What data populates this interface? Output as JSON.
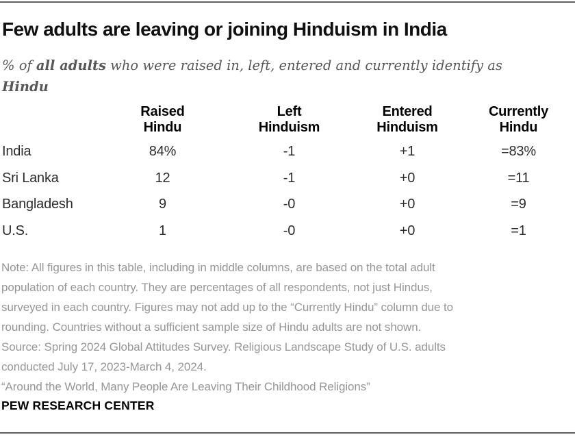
{
  "colors": {
    "background": "#ffffff",
    "title_text": "#101010",
    "subtitle_text": "#58585a",
    "table_text": "#2c2c2c",
    "header_text": "#000000",
    "note_text": "#969696",
    "rule": "#5f5f5f"
  },
  "header": {
    "title": "Few adults are leaving or joining Hinduism in India",
    "subtitle": {
      "prefix": "% of ",
      "emphasis1": "all adults",
      "middle": " who were raised in, left, entered and currently identify as",
      "emphasis2": "Hindu"
    }
  },
  "table": {
    "header": [
      {
        "l1": "Raised",
        "l2": "Hindu"
      },
      {
        "l1": "Left",
        "l2": "Hinduism"
      },
      {
        "l1": "Entered",
        "l2": "Hinduism"
      },
      {
        "l1": "Currently",
        "l2": "Hindu"
      }
    ],
    "rows": [
      {
        "country": "India",
        "raised": "84%",
        "left": "-1",
        "entered": "+1",
        "currently": "=83%"
      },
      {
        "country": "Sri Lanka",
        "raised": "12",
        "left": "-1",
        "entered": "+0",
        "currently": "=11"
      },
      {
        "country": "Bangladesh",
        "raised": "9",
        "left": "-0",
        "entered": "+0",
        "currently": "=9"
      },
      {
        "country": "U.S.",
        "raised": "1",
        "left": "-0",
        "entered": "+0",
        "currently": "=1"
      }
    ]
  },
  "chart_data": {
    "type": "table",
    "title": "Few adults are leaving or joining Hinduism in India",
    "subtitle": "% of all adults who were raised in, left, entered and currently identify as Hindu",
    "categories": [
      "India",
      "Sri Lanka",
      "Bangladesh",
      "U.S."
    ],
    "columns": [
      "Raised Hindu",
      "Left Hinduism",
      "Entered Hinduism",
      "Currently Hindu"
    ],
    "series": [
      {
        "name": "Raised Hindu",
        "values": [
          84,
          12,
          9,
          1
        ]
      },
      {
        "name": "Left Hinduism",
        "values": [
          -1,
          -1,
          0,
          0
        ]
      },
      {
        "name": "Entered Hinduism",
        "values": [
          1,
          0,
          0,
          0
        ]
      },
      {
        "name": "Currently Hindu",
        "values": [
          83,
          11,
          9,
          1
        ]
      }
    ],
    "unit": "% of all adults"
  },
  "footer": {
    "lines": [
      "Note: All figures in this table, including in middle columns, are based on the total adult",
      "population of each country. They are percentages of all respondents, not just Hindus,",
      "surveyed in each country. Figures may not add up to the “Currently Hindu” column due to",
      "rounding. Countries without a sufficient sample size of Hindu adults are not shown.",
      "Source: Spring 2024 Global Attitudes Survey. Religious Landscape Study of U.S. adults",
      "conducted July 17, 2023-March 4, 2024.",
      "“Around the World, Many People Are Leaving Their Childhood Religions”"
    ],
    "brand": "PEW RESEARCH CENTER"
  }
}
